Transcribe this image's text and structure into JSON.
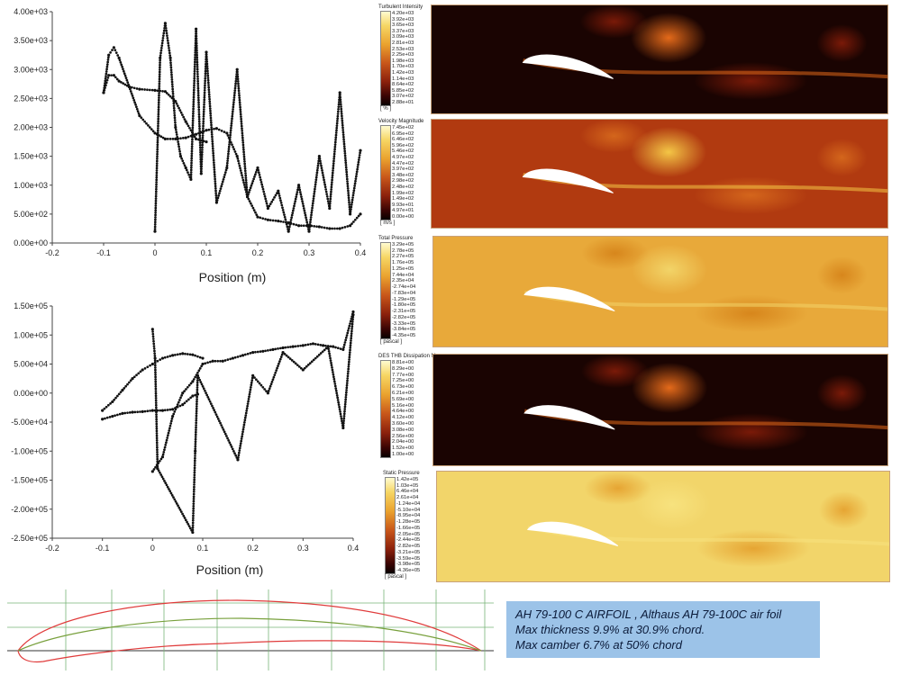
{
  "plots": [
    {
      "id": "top",
      "xlabel": "Position (m)",
      "xticks": [
        "-0.2",
        "-0.1",
        "0",
        "0.1",
        "0.2",
        "0.3",
        "0.4"
      ],
      "yticks": [
        "0.00e+00",
        "5.00e+02",
        "1.00e+03",
        "1.50e+03",
        "2.00e+03",
        "2.50e+03",
        "3.00e+03",
        "3.50e+03",
        "4.00e+03"
      ]
    },
    {
      "id": "bottom",
      "xlabel": "Position (m)",
      "xticks": [
        "-0.2",
        "-0.1",
        "0",
        "0.1",
        "0.2",
        "0.3",
        "0.4"
      ],
      "yticks": [
        "-2.50e+05",
        "-2.00e+05",
        "-1.50e+05",
        "-1.00e+05",
        "-5.00e+04",
        "0.00e+00",
        "5.00e+04",
        "1.00e+05",
        "1.50e+05"
      ]
    }
  ],
  "chart_data": [
    {
      "type": "scatter",
      "title": "",
      "xlabel": "Position (m)",
      "ylabel": "",
      "xlim": [
        -0.2,
        0.4
      ],
      "ylim": [
        0,
        4000
      ],
      "grid": false,
      "series": [
        {
          "x": [
            -0.1,
            -0.09,
            -0.08,
            -0.07,
            -0.05,
            -0.03,
            0.0,
            0.02,
            0.04,
            0.06,
            0.08,
            0.1,
            0.12,
            0.14,
            0.16,
            0.18,
            0.2,
            0.22,
            0.24,
            0.26,
            0.28,
            0.3,
            0.32,
            0.34,
            0.36,
            0.38,
            0.4
          ],
          "y": [
            2600,
            3250,
            3380,
            3200,
            2700,
            2200,
            1900,
            1800,
            1800,
            1820,
            1880,
            1950,
            1980,
            1900,
            1500,
            800,
            450,
            400,
            380,
            350,
            300,
            300,
            280,
            250,
            250,
            300,
            500
          ]
        },
        {
          "x": [
            -0.1,
            -0.09,
            -0.08,
            -0.07,
            -0.05,
            -0.03,
            0.0,
            0.02,
            0.04,
            0.06,
            0.08,
            0.1
          ],
          "y": [
            2600,
            2900,
            2900,
            2800,
            2700,
            2660,
            2640,
            2620,
            2450,
            2100,
            1800,
            1750
          ]
        },
        {
          "x": [
            0.0,
            0.01,
            0.02,
            0.03,
            0.04,
            0.05,
            0.06,
            0.07,
            0.08,
            0.09,
            0.1,
            0.12,
            0.14,
            0.16,
            0.18,
            0.2,
            0.22,
            0.24,
            0.26,
            0.28,
            0.3,
            0.32,
            0.34,
            0.36,
            0.38,
            0.4
          ],
          "y": [
            200,
            3200,
            3800,
            3200,
            2000,
            1500,
            1300,
            1100,
            3700,
            1200,
            3300,
            700,
            1300,
            3000,
            800,
            1300,
            600,
            900,
            200,
            1000,
            200,
            1500,
            600,
            2600,
            500,
            1600
          ]
        }
      ]
    },
    {
      "type": "scatter",
      "title": "",
      "xlabel": "Position (m)",
      "ylabel": "",
      "xlim": [
        -0.2,
        0.4
      ],
      "ylim": [
        -250000,
        150000
      ],
      "grid": false,
      "series": [
        {
          "x": [
            -0.1,
            -0.08,
            -0.06,
            -0.04,
            -0.02,
            0.0,
            0.02,
            0.04,
            0.06,
            0.08,
            0.1
          ],
          "y": [
            -30000,
            -15000,
            5000,
            25000,
            40000,
            50000,
            60000,
            65000,
            68000,
            66000,
            60000
          ]
        },
        {
          "x": [
            -0.1,
            -0.08,
            -0.06,
            -0.04,
            -0.02,
            0.0,
            0.02,
            0.04,
            0.06,
            0.08,
            0.09
          ],
          "y": [
            -45000,
            -40000,
            -35000,
            -33000,
            -32000,
            -30000,
            -30000,
            -28000,
            -20000,
            -5000,
            -2000
          ]
        },
        {
          "x": [
            0.0,
            0.02,
            0.04,
            0.06,
            0.08,
            0.1,
            0.12,
            0.14,
            0.16,
            0.18,
            0.2,
            0.22,
            0.24,
            0.26,
            0.28,
            0.3,
            0.32,
            0.34,
            0.36,
            0.38,
            0.4
          ],
          "y": [
            -135000,
            -110000,
            -40000,
            0,
            20000,
            50000,
            55000,
            55000,
            60000,
            65000,
            70000,
            72000,
            75000,
            78000,
            80000,
            82000,
            85000,
            82000,
            80000,
            75000,
            140000
          ]
        },
        {
          "x": [
            0.0,
            0.005,
            0.01,
            0.08,
            0.085,
            0.09,
            0.17,
            0.2,
            0.23,
            0.26,
            0.3,
            0.35,
            0.38,
            0.4
          ],
          "y": [
            110000,
            60000,
            -130000,
            -240000,
            -100000,
            30000,
            -115000,
            30000,
            0,
            70000,
            40000,
            80000,
            -60000,
            135000
          ]
        }
      ]
    }
  ],
  "contours": [
    {
      "id": "turbulent-intensity",
      "title": "Turbulent Intensity",
      "unit": "[ % ]",
      "values": [
        "4.20e+03",
        "3.92e+03",
        "3.65e+03",
        "3.37e+03",
        "3.09e+03",
        "2.81e+03",
        "2.53e+03",
        "2.25e+03",
        "1.98e+03",
        "1.70e+03",
        "1.42e+03",
        "1.14e+03",
        "8.64e+02",
        "5.85e+02",
        "3.07e+02",
        "2.88e+01"
      ],
      "colors": {
        "bg": "#1a0402",
        "mid": "#7a1a08",
        "hot": "#e46a1a"
      }
    },
    {
      "id": "velocity-magnitude",
      "title": "Velocity Magnitude",
      "unit": "[ m/s ]",
      "values": [
        "7.45e+02",
        "6.95e+02",
        "6.46e+02",
        "5.96e+02",
        "5.46e+02",
        "4.97e+02",
        "4.47e+02",
        "3.97e+02",
        "3.48e+02",
        "2.98e+02",
        "2.48e+02",
        "1.99e+02",
        "1.49e+02",
        "9.93e+01",
        "4.97e+01",
        "0.00e+00"
      ],
      "colors": {
        "bg": "#b13a10",
        "mid": "#d4661c",
        "hot": "#f4c646"
      }
    },
    {
      "id": "total-pressure",
      "title": "Total Pressure",
      "unit": "[ pascal ]",
      "values": [
        "3.29e+05",
        "2.78e+05",
        "2.27e+05",
        "1.76e+05",
        "1.25e+05",
        "7.44e+04",
        "2.35e+04",
        "-2.74e+04",
        "-7.83e+04",
        "-1.29e+05",
        "-1.80e+05",
        "-2.31e+05",
        "-2.82e+05",
        "-3.33e+05",
        "-3.84e+05",
        "-4.35e+05"
      ],
      "colors": {
        "bg": "#e8a93a",
        "mid": "#d7861c",
        "hot": "#f2d468"
      }
    },
    {
      "id": "des-shielding",
      "title": "DES THB Dissipation Mu",
      "unit": "",
      "values": [
        "8.81e+00",
        "8.29e+00",
        "7.77e+00",
        "7.25e+00",
        "6.73e+00",
        "6.21e+00",
        "5.69e+00",
        "5.16e+00",
        "4.64e+00",
        "4.12e+00",
        "3.60e+00",
        "3.08e+00",
        "2.56e+00",
        "2.04e+00",
        "1.52e+00",
        "1.00e+00"
      ],
      "colors": {
        "bg": "#1a0402",
        "mid": "#7a1a08",
        "hot": "#e46a1a"
      }
    },
    {
      "id": "static-pressure",
      "title": "Static Pressure",
      "unit": "[ pascal ]",
      "values": [
        "1.42e+05",
        "1.03e+05",
        "6.46e+04",
        "2.61e+04",
        "-1.24e+04",
        "-5.10e+04",
        "-8.95e+04",
        "-1.28e+05",
        "-1.66e+05",
        "-2.05e+05",
        "-2.44e+05",
        "-2.82e+05",
        "-3.21e+05",
        "-3.59e+05",
        "-3.98e+05",
        "-4.36e+05"
      ],
      "colors": {
        "bg": "#f2d56a",
        "mid": "#e6a533",
        "hot": "#f7e27e"
      }
    }
  ],
  "airfoil_info": {
    "line1": "AH 79-100 C AIRFOIL , Althaus AH 79-100C air foil",
    "line2": "Max thickness 9.9% at 30.9% chord.",
    "line3": "Max camber 6.7% at 50% chord"
  },
  "airfoil_plot": {
    "colors": {
      "outline": "#e03b3b",
      "camber": "#78a03c",
      "grid": "#78b478",
      "axis": "#333333"
    }
  }
}
